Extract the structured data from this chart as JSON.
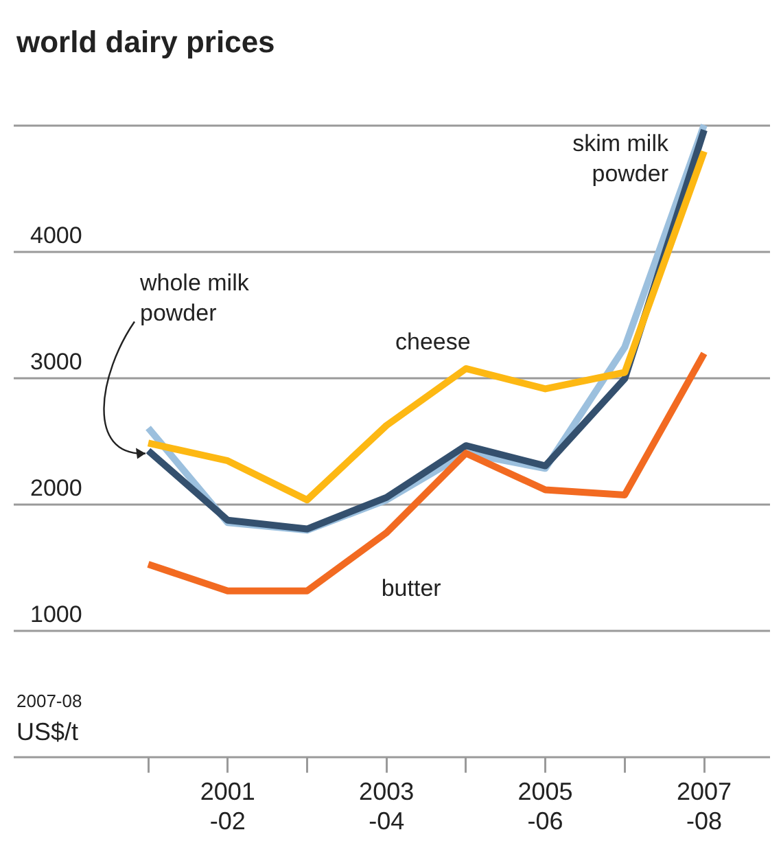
{
  "chart_data": {
    "type": "line",
    "title": "world dairy prices",
    "ylabel": "2007-08 US$/t",
    "categories": [
      null,
      "2001-02",
      null,
      "2003-04",
      null,
      "2005-06",
      null,
      "2007-08"
    ],
    "series": [
      {
        "name": "butter",
        "color": "#f26a21",
        "values": [
          1520,
          1310,
          1310,
          1770,
          2400,
          2110,
          2070,
          3190
        ]
      },
      {
        "name": "cheese",
        "color": "#fdb813",
        "values": [
          2480,
          2340,
          2030,
          2620,
          3070,
          2910,
          3040,
          4790
        ]
      },
      {
        "name": "whole milk powder",
        "color": "#34506e",
        "values": [
          2420,
          1870,
          1800,
          2050,
          2460,
          2300,
          2990,
          4960
        ]
      },
      {
        "name": "skim milk powder",
        "color": "#9cc0de",
        "values": [
          2600,
          1850,
          1790,
          2030,
          2400,
          2280,
          3240,
          5000
        ]
      }
    ],
    "ylim": [
      0,
      5000
    ],
    "yticks": [
      {
        "value": 0,
        "label": null
      },
      1000,
      2000,
      3000,
      4000,
      {
        "value": 5000,
        "label": null
      }
    ],
    "grid": "y",
    "legend": false,
    "marker": "none",
    "line_style": "solid"
  }
}
